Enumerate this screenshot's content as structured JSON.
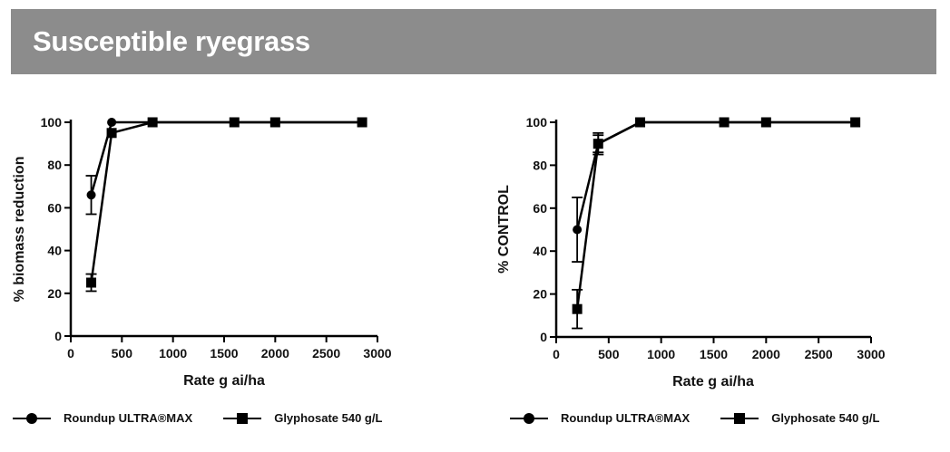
{
  "header": {
    "title": "Susceptible ryegrass"
  },
  "colors": {
    "header_bg": "#8c8c8c",
    "series": "#000000"
  },
  "legend": {
    "series_a": "Roundup ULTRA®MAX",
    "series_b": "Glyphosate 540 g/L"
  },
  "chart_data": [
    {
      "type": "line",
      "title": "",
      "xlabel": "Rate g ai/ha",
      "ylabel": "% biomass reduction",
      "xlim": [
        0,
        3000
      ],
      "ylim": [
        0,
        100
      ],
      "xticks": [
        0,
        500,
        1000,
        1500,
        2000,
        2500,
        3000
      ],
      "yticks": [
        0,
        20,
        40,
        60,
        80,
        100
      ],
      "grid": false,
      "legend_position": "bottom",
      "series": [
        {
          "name": "Roundup ULTRA®MAX",
          "marker": "circle",
          "x": [
            200,
            400,
            800,
            1600,
            2000,
            2850
          ],
          "y": [
            66,
            100,
            100,
            100,
            100,
            100
          ],
          "err": [
            9,
            0,
            0,
            0,
            0,
            0
          ]
        },
        {
          "name": "Glyphosate 540 g/L",
          "marker": "square",
          "x": [
            200,
            400,
            800,
            1600,
            2000,
            2850
          ],
          "y": [
            25,
            95,
            100,
            100,
            100,
            100
          ],
          "err": [
            4,
            0,
            0,
            0,
            0,
            0
          ]
        }
      ]
    },
    {
      "type": "line",
      "title": "",
      "xlabel": "Rate g ai/ha",
      "ylabel": "% CONTROL",
      "xlim": [
        0,
        3000
      ],
      "ylim": [
        0,
        100
      ],
      "xticks": [
        0,
        500,
        1000,
        1500,
        2000,
        2500,
        3000
      ],
      "yticks": [
        0,
        20,
        40,
        60,
        80,
        100
      ],
      "grid": false,
      "legend_position": "bottom",
      "series": [
        {
          "name": "Roundup ULTRA®MAX",
          "marker": "circle",
          "x": [
            200,
            400,
            800,
            1600,
            2000,
            2850
          ],
          "y": [
            50,
            90,
            100,
            100,
            100,
            100
          ],
          "err": [
            15,
            5,
            0,
            0,
            0,
            0
          ]
        },
        {
          "name": "Glyphosate 540 g/L",
          "marker": "square",
          "x": [
            200,
            400,
            800,
            1600,
            2000,
            2850
          ],
          "y": [
            13,
            90,
            100,
            100,
            100,
            100
          ],
          "err": [
            9,
            4,
            0,
            0,
            0,
            0
          ]
        }
      ]
    }
  ]
}
